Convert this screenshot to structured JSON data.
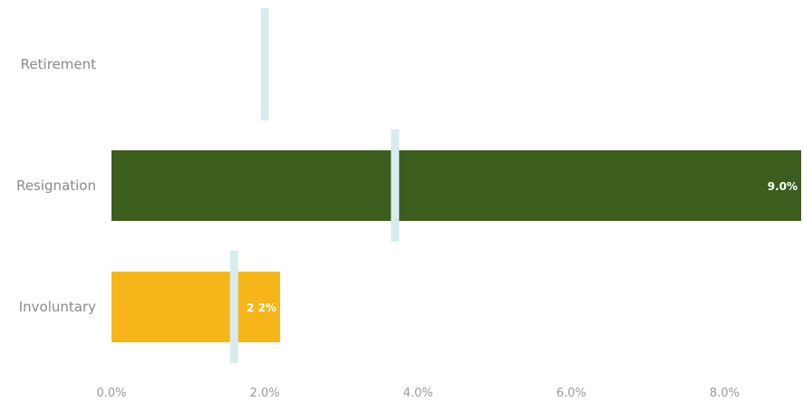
{
  "chart_data": {
    "type": "bar",
    "orientation": "horizontal",
    "categories": [
      "Retirement",
      "Resignation",
      "Involuntary"
    ],
    "values": [
      0.0,
      9.0,
      2.2
    ],
    "data_labels": [
      "",
      "9.0%",
      "2 2%"
    ],
    "benchmarks": [
      2.0,
      3.7,
      1.6
    ],
    "colors": [
      "#f6b519",
      "#3b5e1e",
      "#f6b519"
    ],
    "benchmark_color": "#d8ecef",
    "xlim": [
      0,
      9.0
    ],
    "xticks": [
      0,
      2,
      4,
      6,
      8
    ],
    "xtick_labels": [
      "0.0%",
      "2.0%",
      "4.0%",
      "6.0%",
      "8.0%"
    ],
    "title": "",
    "xlabel": "",
    "ylabel": "",
    "grid": false,
    "legend": "none"
  }
}
